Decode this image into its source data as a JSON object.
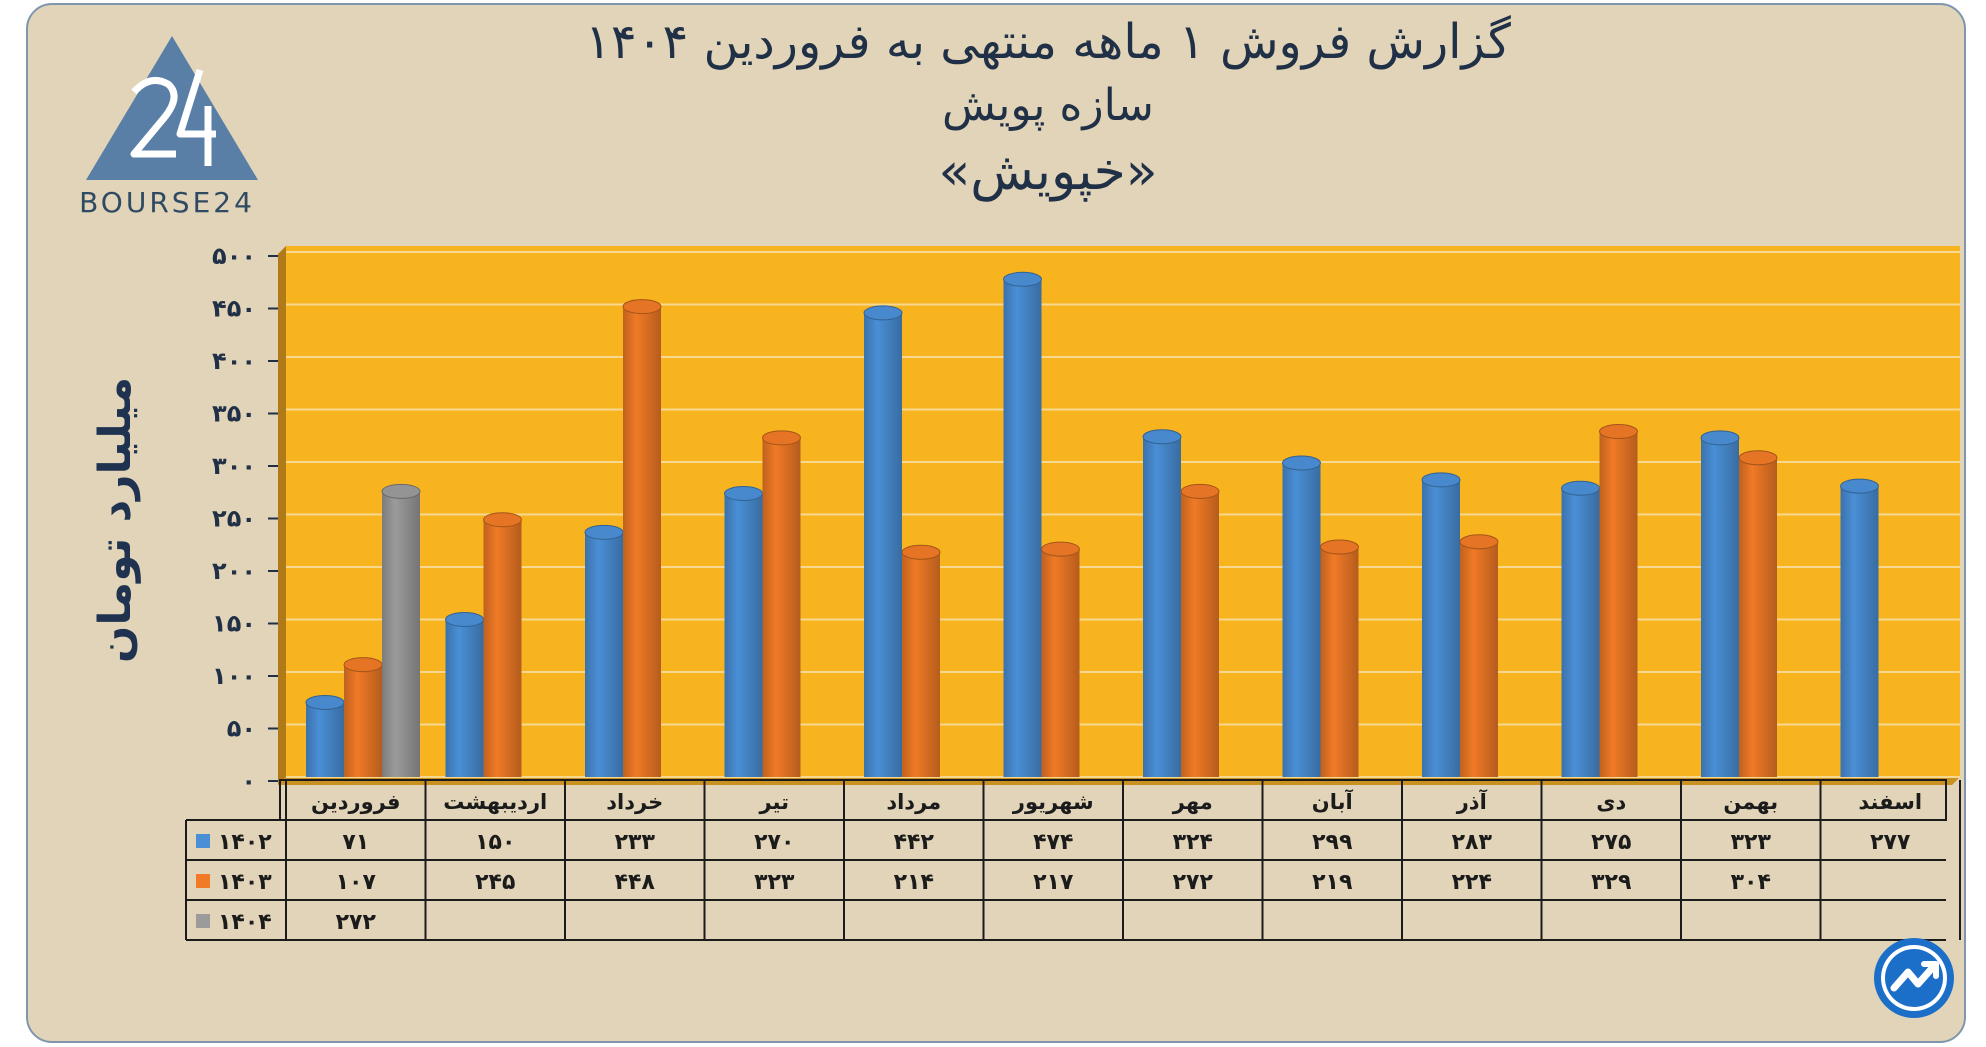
{
  "header": {
    "title_line1": "گزارش  فروش ۱ ماهه منتهی به فروردین ۱۴۰۴",
    "title_line2": "سازه پویش",
    "title_line3": "«خپویش»"
  },
  "logo": {
    "text": "BOURSE24",
    "icon": "bourse24-logo-icon"
  },
  "badge": {
    "icon": "trend-arrow-icon"
  },
  "colors": {
    "s1402": "#4a8fd6",
    "s1403": "#f07a26",
    "s1404": "#9b9b9b",
    "plot_bg": "#f8b41f",
    "frame_bg": "#e1d4b8"
  },
  "chart_data": {
    "type": "bar",
    "title": "گزارش  فروش ۱ ماهه منتهی به فروردین ۱۴۰۴",
    "ylabel": "میلیارد تومان",
    "ylim": [
      0,
      500
    ],
    "yticks": [
      0,
      50,
      100,
      150,
      200,
      250,
      300,
      350,
      400,
      450,
      500
    ],
    "ytick_labels": [
      "۰",
      "۵۰",
      "۱۰۰",
      "۱۵۰",
      "۲۰۰",
      "۲۵۰",
      "۳۰۰",
      "۳۵۰",
      "۴۰۰",
      "۴۵۰",
      "۵۰۰"
    ],
    "grid": true,
    "categories": [
      "فروردین",
      "اردیبهشت",
      "خرداد",
      "تیر",
      "مرداد",
      "شهریور",
      "مهر",
      "آبان",
      "آذر",
      "دی",
      "بهمن",
      "اسفند"
    ],
    "series": [
      {
        "name": "۱۴۰۲",
        "color": "#4a8fd6",
        "values": [
          71,
          150,
          233,
          270,
          442,
          474,
          324,
          299,
          283,
          275,
          323,
          277
        ],
        "labels": [
          "۷۱",
          "۱۵۰",
          "۲۳۳",
          "۲۷۰",
          "۴۴۲",
          "۴۷۴",
          "۳۲۴",
          "۲۹۹",
          "۲۸۳",
          "۲۷۵",
          "۳۲۳",
          "۲۷۷"
        ]
      },
      {
        "name": "۱۴۰۳",
        "color": "#f07a26",
        "values": [
          107,
          245,
          448,
          323,
          214,
          217,
          272,
          219,
          224,
          329,
          304,
          null
        ],
        "labels": [
          "۱۰۷",
          "۲۴۵",
          "۴۴۸",
          "۳۲۳",
          "۲۱۴",
          "۲۱۷",
          "۲۷۲",
          "۲۱۹",
          "۲۲۴",
          "۳۲۹",
          "۳۰۴",
          ""
        ]
      },
      {
        "name": "۱۴۰۴",
        "color": "#9b9b9b",
        "values": [
          272,
          null,
          null,
          null,
          null,
          null,
          null,
          null,
          null,
          null,
          null,
          null
        ],
        "labels": [
          "۲۷۲",
          "",
          "",
          "",
          "",
          "",
          "",
          "",
          "",
          "",
          "",
          ""
        ]
      }
    ]
  }
}
